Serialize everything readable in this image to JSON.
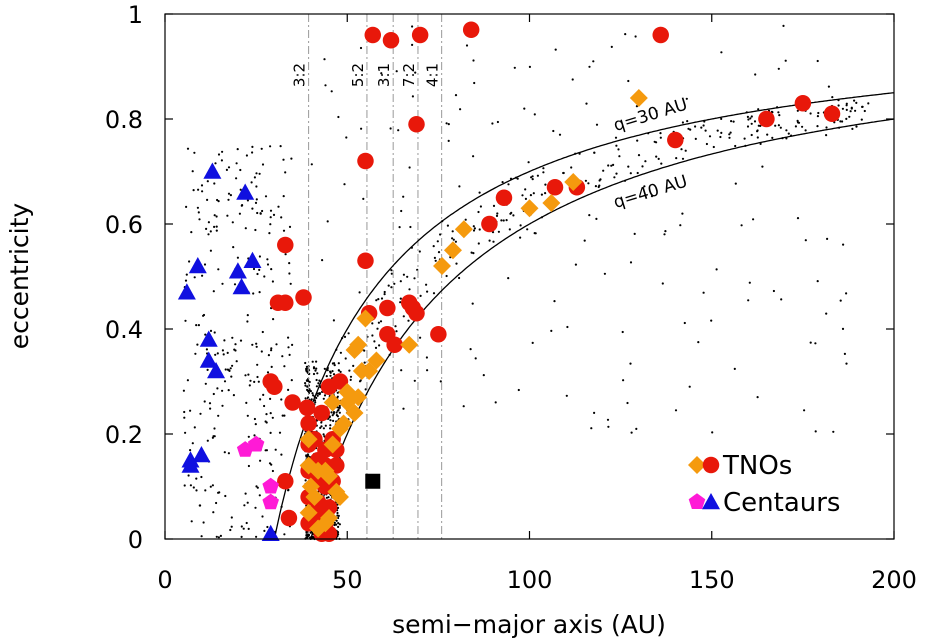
{
  "chart_data": {
    "type": "scatter",
    "xlabel": "semi−major axis (AU)",
    "ylabel": "eccentricity",
    "xlim": [
      0,
      200
    ],
    "ylim": [
      0,
      1
    ],
    "x_ticks": [
      0,
      50,
      100,
      150,
      200
    ],
    "y_ticks": [
      0,
      0.2,
      0.4,
      0.6,
      0.8,
      1
    ],
    "x_tick_labels": [
      "0",
      "50",
      "100",
      "150",
      "200"
    ],
    "y_tick_labels": [
      "0",
      "0.2",
      "0.4",
      "0.6",
      "0.8",
      "1"
    ],
    "grid": false,
    "legend_position": "bottom-right",
    "resonances": [
      {
        "label": "3:2",
        "a": 39.4
      },
      {
        "label": "5:2",
        "a": 55.4
      },
      {
        "label": "3:1",
        "a": 62.6
      },
      {
        "label": "7:2",
        "a": 69.4
      },
      {
        "label": "4:1",
        "a": 75.9
      }
    ],
    "curves": [
      {
        "label": "q=30 AU",
        "q": 30
      },
      {
        "label": "q=40 AU",
        "q": 40
      }
    ],
    "series": [
      {
        "name": "TNOs",
        "marker": "circle",
        "color": "#e8180a",
        "points": [
          [
            84,
            0.97
          ],
          [
            57,
            0.96
          ],
          [
            62,
            0.95
          ],
          [
            70,
            0.96
          ],
          [
            136,
            0.96
          ],
          [
            69,
            0.79
          ],
          [
            55,
            0.72
          ],
          [
            175,
            0.83
          ],
          [
            183,
            0.81
          ],
          [
            165,
            0.8
          ],
          [
            140,
            0.76
          ],
          [
            107,
            0.67
          ],
          [
            113,
            0.67
          ],
          [
            93,
            0.65
          ],
          [
            89,
            0.6
          ],
          [
            33,
            0.56
          ],
          [
            55,
            0.53
          ],
          [
            38,
            0.46
          ],
          [
            31,
            0.45
          ],
          [
            33,
            0.45
          ],
          [
            67,
            0.45
          ],
          [
            61,
            0.44
          ],
          [
            68,
            0.44
          ],
          [
            69,
            0.43
          ],
          [
            56,
            0.43
          ],
          [
            75,
            0.39
          ],
          [
            61,
            0.39
          ],
          [
            63,
            0.37
          ],
          [
            29,
            0.3
          ],
          [
            30,
            0.29
          ],
          [
            45,
            0.29
          ],
          [
            48,
            0.3
          ],
          [
            35,
            0.26
          ],
          [
            39,
            0.25
          ],
          [
            43,
            0.24
          ],
          [
            39.4,
            0.22
          ],
          [
            39.4,
            0.18
          ],
          [
            39.4,
            0.13
          ],
          [
            39.4,
            0.08
          ],
          [
            39.4,
            0.03
          ],
          [
            41,
            0.19
          ],
          [
            42,
            0.15
          ],
          [
            43,
            0.12
          ],
          [
            44,
            0.1
          ],
          [
            42,
            0.07
          ],
          [
            43,
            0.05
          ],
          [
            44,
            0.03
          ],
          [
            45,
            0.06
          ],
          [
            46,
            0.11
          ],
          [
            47,
            0.14
          ],
          [
            46,
            0.19
          ],
          [
            44,
            0.17
          ],
          [
            41,
            0.05
          ],
          [
            45,
            0.01
          ],
          [
            43,
            0.01
          ],
          [
            33,
            0.11
          ],
          [
            34,
            0.04
          ],
          [
            42,
            0.11
          ],
          [
            44,
            0.14
          ],
          [
            47,
            0.17
          ]
        ]
      },
      {
        "name": "TNOs",
        "marker": "diamond",
        "color": "#f59a0e",
        "points": [
          [
            130,
            0.84
          ],
          [
            112,
            0.68
          ],
          [
            106,
            0.64
          ],
          [
            100,
            0.63
          ],
          [
            82,
            0.59
          ],
          [
            79,
            0.55
          ],
          [
            76,
            0.52
          ],
          [
            55,
            0.42
          ],
          [
            53,
            0.37
          ],
          [
            52,
            0.36
          ],
          [
            58,
            0.34
          ],
          [
            54,
            0.32
          ],
          [
            56,
            0.32
          ],
          [
            67,
            0.37
          ],
          [
            53,
            0.27
          ],
          [
            50,
            0.26
          ],
          [
            52,
            0.24
          ],
          [
            49,
            0.22
          ],
          [
            48,
            0.21
          ],
          [
            46,
            0.18
          ],
          [
            47,
            0.09
          ],
          [
            48,
            0.08
          ],
          [
            45,
            0.12
          ],
          [
            44,
            0.13
          ],
          [
            42,
            0.13
          ],
          [
            40,
            0.1
          ],
          [
            41,
            0.08
          ],
          [
            42,
            0.02
          ],
          [
            44,
            0.03
          ],
          [
            45,
            0.04
          ],
          [
            39.4,
            0.19
          ],
          [
            39.4,
            0.14
          ],
          [
            39.4,
            0.05
          ],
          [
            46,
            0.26
          ],
          [
            50,
            0.28
          ]
        ]
      },
      {
        "name": "Centaurs",
        "marker": "pentagon",
        "color": "#ff1ad6",
        "points": [
          [
            22,
            0.17
          ],
          [
            25,
            0.18
          ],
          [
            29,
            0.1
          ],
          [
            29,
            0.07
          ]
        ]
      },
      {
        "name": "Centaurs",
        "marker": "triangle",
        "color": "#1010e0",
        "points": [
          [
            13,
            0.7
          ],
          [
            22,
            0.66
          ],
          [
            6,
            0.47
          ],
          [
            9,
            0.52
          ],
          [
            24,
            0.53
          ],
          [
            20,
            0.51
          ],
          [
            21,
            0.48
          ],
          [
            12,
            0.38
          ],
          [
            12,
            0.34
          ],
          [
            14,
            0.32
          ],
          [
            7,
            0.15
          ],
          [
            7,
            0.14
          ],
          [
            10,
            0.16
          ],
          [
            29,
            0.01
          ]
        ]
      },
      {
        "name": "",
        "marker": "square",
        "color": "#000000",
        "points": [
          [
            57,
            0.11
          ]
        ]
      }
    ]
  },
  "legend": [
    {
      "label": "TNOs",
      "markers": [
        "diamond",
        "circle"
      ],
      "colors": [
        "#f59a0e",
        "#e8180a"
      ]
    },
    {
      "label": "Centaurs",
      "markers": [
        "pentagon",
        "triangle"
      ],
      "colors": [
        "#ff1ad6",
        "#1010e0"
      ]
    }
  ]
}
